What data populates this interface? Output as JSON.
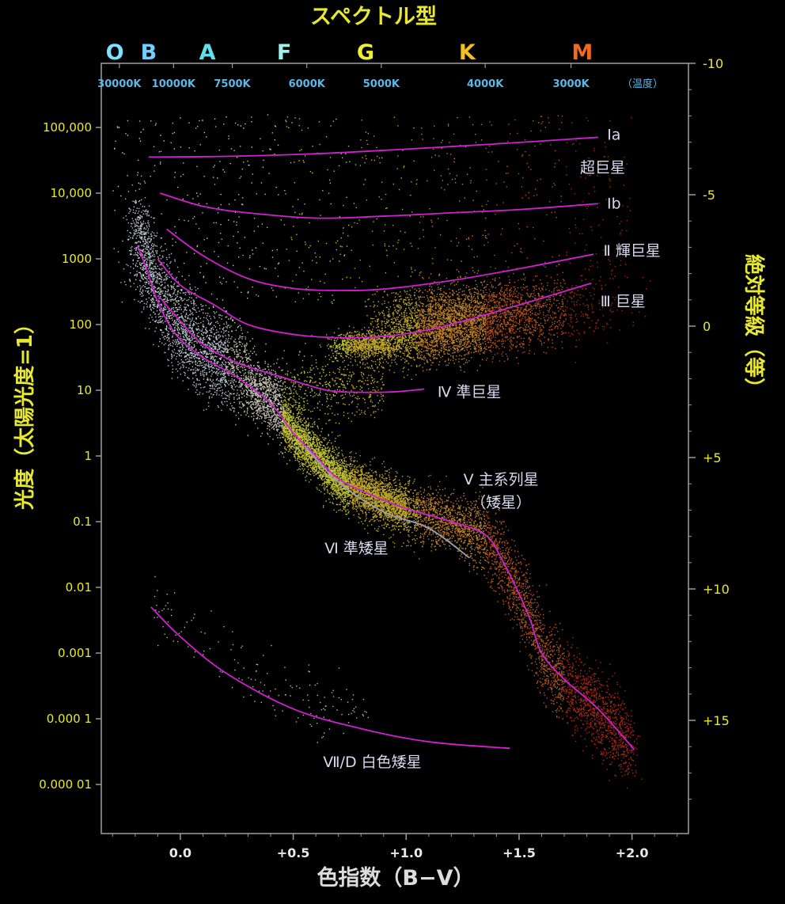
{
  "chart_data": {
    "type": "scatter",
    "title": "スペクトル型",
    "xlabel": "色指数（B−V）",
    "ylabel_left": "光度（太陽光度=1）",
    "ylabel_right": "絶対等級（等）",
    "xlim": [
      -0.35,
      2.25
    ],
    "log_luminosity_lim": [
      -5.7,
      5.75
    ],
    "magnitude_lim": [
      18.7,
      -10
    ],
    "x_ticks": [
      {
        "v": 0.0,
        "label": "0.0"
      },
      {
        "v": 0.5,
        "label": "+0.5"
      },
      {
        "v": 1.0,
        "label": "+1.0"
      },
      {
        "v": 1.5,
        "label": "+1.5"
      },
      {
        "v": 2.0,
        "label": "+2.0"
      }
    ],
    "luminosity_ticks": [
      {
        "log": 5,
        "label": "100,000"
      },
      {
        "log": 4,
        "label": "10,000"
      },
      {
        "log": 3,
        "label": "1000"
      },
      {
        "log": 2,
        "label": "100"
      },
      {
        "log": 1,
        "label": "10"
      },
      {
        "log": 0,
        "label": "1"
      },
      {
        "log": -1,
        "label": "0.1"
      },
      {
        "log": -2,
        "label": "0.01"
      },
      {
        "log": -3,
        "label": "0.001"
      },
      {
        "log": -4,
        "label": "0.000 1"
      },
      {
        "log": -5,
        "label": "0.000 01"
      }
    ],
    "magnitude_ticks": [
      {
        "m": -10,
        "label": "-10"
      },
      {
        "m": -5,
        "label": "-5"
      },
      {
        "m": 0,
        "label": "0"
      },
      {
        "m": 5,
        "label": "+5"
      },
      {
        "m": 10,
        "label": "+10"
      },
      {
        "m": 15,
        "label": "+15"
      }
    ],
    "spectral_classes": [
      {
        "name": "O",
        "bv": -0.29,
        "color": "#7fe0ff"
      },
      {
        "name": "B",
        "bv": -0.14,
        "color": "#6fd0ff"
      },
      {
        "name": "A",
        "bv": 0.12,
        "color": "#60e0e8"
      },
      {
        "name": "F",
        "bv": 0.46,
        "color": "#9ff0f0"
      },
      {
        "name": "G",
        "bv": 0.82,
        "color": "#f0f030"
      },
      {
        "name": "K",
        "bv": 1.27,
        "color": "#f0c020"
      },
      {
        "name": "M",
        "bv": 1.78,
        "color": "#f06a20"
      }
    ],
    "temperature_ticks": [
      {
        "bv": -0.27,
        "label": "30000K"
      },
      {
        "bv": -0.03,
        "label": "10000K"
      },
      {
        "bv": 0.23,
        "label": "7500K"
      },
      {
        "bv": 0.56,
        "label": "6000K"
      },
      {
        "bv": 0.89,
        "label": "5000K"
      },
      {
        "bv": 1.35,
        "label": "4000K"
      },
      {
        "bv": 1.73,
        "label": "3000K"
      }
    ],
    "temperature_unit": "（温度）",
    "series": [
      {
        "name": "Ia",
        "points": [
          [
            -0.14,
            4.55
          ],
          [
            0.2,
            4.56
          ],
          [
            0.6,
            4.6
          ],
          [
            1.0,
            4.67
          ],
          [
            1.4,
            4.75
          ],
          [
            1.85,
            4.85
          ]
        ]
      },
      {
        "name": "Ib",
        "points": [
          [
            -0.09,
            4.0
          ],
          [
            0.1,
            3.8
          ],
          [
            0.3,
            3.7
          ],
          [
            0.6,
            3.62
          ],
          [
            0.9,
            3.65
          ],
          [
            1.2,
            3.7
          ],
          [
            1.5,
            3.75
          ],
          [
            1.85,
            3.84
          ]
        ]
      },
      {
        "name": "II",
        "points": [
          [
            -0.06,
            3.45
          ],
          [
            0.1,
            3.05
          ],
          [
            0.3,
            2.7
          ],
          [
            0.5,
            2.55
          ],
          [
            0.7,
            2.52
          ],
          [
            0.9,
            2.54
          ],
          [
            1.2,
            2.67
          ],
          [
            1.5,
            2.85
          ],
          [
            1.83,
            3.07
          ]
        ]
      },
      {
        "name": "III",
        "points": [
          [
            -0.1,
            3.0
          ],
          [
            0.0,
            2.6
          ],
          [
            0.15,
            2.3
          ],
          [
            0.3,
            2.0
          ],
          [
            0.5,
            1.85
          ],
          [
            0.7,
            1.8
          ],
          [
            0.9,
            1.82
          ],
          [
            1.1,
            1.92
          ],
          [
            1.3,
            2.1
          ],
          [
            1.55,
            2.35
          ],
          [
            1.82,
            2.63
          ]
        ]
      },
      {
        "name": "IV",
        "points": [
          [
            -0.1,
            2.45
          ],
          [
            0.0,
            2.05
          ],
          [
            0.1,
            1.7
          ],
          [
            0.25,
            1.42
          ],
          [
            0.45,
            1.2
          ],
          [
            0.65,
            1.0
          ],
          [
            0.8,
            0.97
          ],
          [
            0.9,
            0.97
          ],
          [
            1.0,
            0.99
          ],
          [
            1.08,
            1.02
          ]
        ]
      },
      {
        "name": "V",
        "points": [
          [
            -0.19,
            3.2
          ],
          [
            -0.15,
            2.85
          ],
          [
            -0.1,
            2.35
          ],
          [
            -0.02,
            1.85
          ],
          [
            0.1,
            1.5
          ],
          [
            0.25,
            1.2
          ],
          [
            0.4,
            0.8
          ],
          [
            0.5,
            0.35
          ],
          [
            0.6,
            0.0
          ],
          [
            0.7,
            -0.35
          ],
          [
            0.85,
            -0.6
          ],
          [
            1.0,
            -0.8
          ],
          [
            1.2,
            -1.0
          ],
          [
            1.35,
            -1.2
          ],
          [
            1.42,
            -1.55
          ],
          [
            1.5,
            -2.1
          ],
          [
            1.55,
            -2.5
          ],
          [
            1.6,
            -3.0
          ],
          [
            1.7,
            -3.4
          ],
          [
            1.85,
            -3.85
          ],
          [
            2.01,
            -4.47
          ]
        ]
      },
      {
        "name": "VI",
        "points": [
          [
            0.55,
            0.15
          ],
          [
            0.7,
            -0.4
          ],
          [
            0.9,
            -0.85
          ],
          [
            1.1,
            -1.1
          ],
          [
            1.28,
            -1.55
          ]
        ]
      },
      {
        "name": "VII/D",
        "points": [
          [
            -0.13,
            -2.3
          ],
          [
            0.0,
            -2.75
          ],
          [
            0.2,
            -3.3
          ],
          [
            0.5,
            -3.85
          ],
          [
            0.8,
            -4.15
          ],
          [
            1.1,
            -4.35
          ],
          [
            1.46,
            -4.45
          ]
        ]
      },
      {
        "name": "VI-line-color",
        "points": []
      }
    ],
    "series_colors": {
      "default": "#d020d0",
      "VI": "#9aa0b8"
    },
    "region_labels": [
      {
        "key": "Ia",
        "text": "Ⅰa",
        "bv": 1.92,
        "log": 4.9
      },
      {
        "key": "Ia_name",
        "text": "超巨星",
        "bv": 1.87,
        "log": 4.4
      },
      {
        "key": "Ib",
        "text": "Ⅰb",
        "bv": 1.92,
        "log": 3.85
      },
      {
        "key": "II",
        "text": "Ⅱ 輝巨星",
        "bv": 2.0,
        "log": 3.13
      },
      {
        "key": "III",
        "text": "Ⅲ 巨星",
        "bv": 1.96,
        "log": 2.36
      },
      {
        "key": "IV",
        "text": "Ⅳ 準巨星",
        "bv": 1.28,
        "log": 0.98
      },
      {
        "key": "V",
        "text": "Ⅴ 主系列星",
        "bv": 1.42,
        "log": -0.35
      },
      {
        "key": "V_sub",
        "text": "（矮星）",
        "bv": 1.42,
        "log": -0.7
      },
      {
        "key": "VI",
        "text": "Ⅵ 準矮星",
        "bv": 0.78,
        "log": -1.4
      },
      {
        "key": "VII",
        "text": "Ⅶ/D 白色矮星",
        "bv": 0.85,
        "log": -4.65
      }
    ],
    "star_density_regions": [
      {
        "region": "main-sequence",
        "color_scale": "white-yellow-orange-red"
      },
      {
        "region": "giant-clump",
        "color_scale": "yellow-orange"
      },
      {
        "region": "white-dwarf",
        "color_scale": "white"
      }
    ],
    "colors": {
      "axis_text": "#e8e830",
      "temp_text": "#5ab8e8",
      "line": "#d020d0",
      "label": "#d8d8f0",
      "axis": "#9a9a9a"
    },
    "grid": false
  }
}
